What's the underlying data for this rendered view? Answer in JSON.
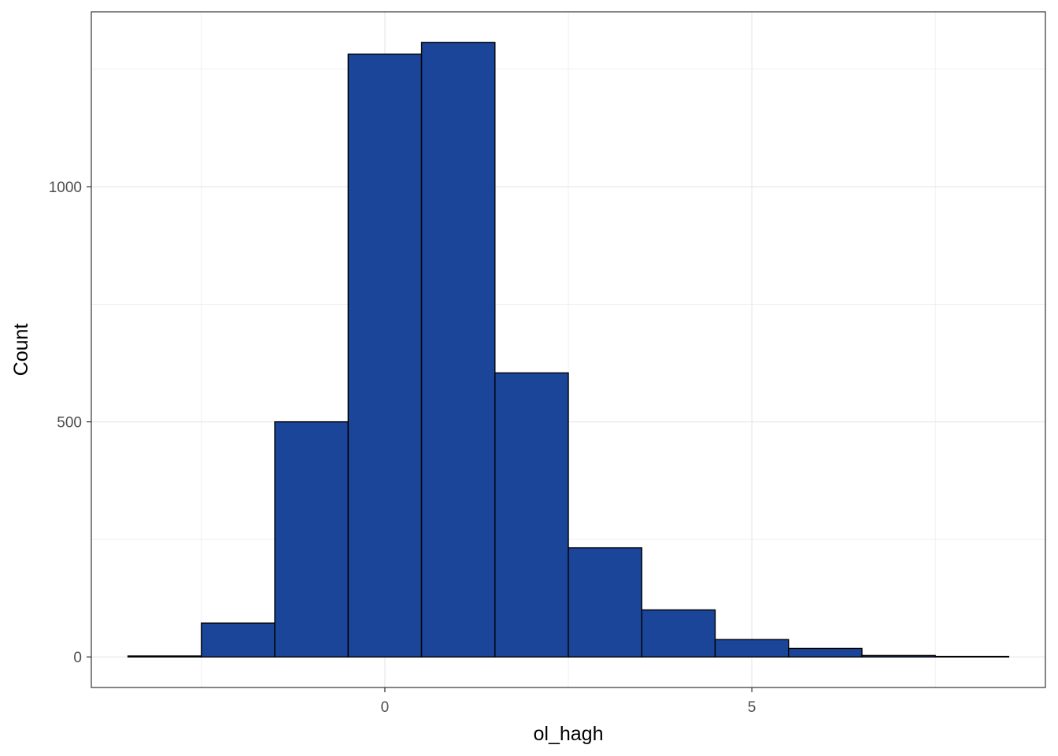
{
  "chart_data": {
    "type": "bar",
    "subtype": "histogram",
    "xlabel": "ol_hagh",
    "ylabel": "Count",
    "bin_width": 1,
    "bins": [
      {
        "x0": -3.5,
        "x1": -2.5,
        "count": 2
      },
      {
        "x0": -2.5,
        "x1": -1.5,
        "count": 72
      },
      {
        "x0": -1.5,
        "x1": -0.5,
        "count": 500
      },
      {
        "x0": -0.5,
        "x1": 0.5,
        "count": 1282
      },
      {
        "x0": 0.5,
        "x1": 1.5,
        "count": 1307
      },
      {
        "x0": 1.5,
        "x1": 2.5,
        "count": 604
      },
      {
        "x0": 2.5,
        "x1": 3.5,
        "count": 232
      },
      {
        "x0": 3.5,
        "x1": 4.5,
        "count": 100
      },
      {
        "x0": 4.5,
        "x1": 5.5,
        "count": 37
      },
      {
        "x0": 5.5,
        "x1": 6.5,
        "count": 18
      },
      {
        "x0": 6.5,
        "x1": 7.5,
        "count": 3
      },
      {
        "x0": 7.5,
        "x1": 8.5,
        "count": 1
      }
    ],
    "xlim": [
      -4.0,
      9.0
    ],
    "ylim": [
      -65,
      1372
    ],
    "x_ticks": [
      0,
      5
    ],
    "x_tick_labels": [
      "0",
      "5"
    ],
    "x_minor_ticks": [
      -2.5,
      2.5,
      7.5
    ],
    "y_ticks": [
      0,
      500,
      1000
    ],
    "y_tick_labels": [
      "0",
      "500",
      "1000"
    ],
    "y_minor_ticks": [
      250,
      750,
      1250
    ],
    "grid": true,
    "legend": "none",
    "colors": {
      "bar_fill": "#1A4599",
      "bar_outline": "#000000",
      "grid": "#EBEBEB",
      "panel_border": "#333333"
    }
  }
}
